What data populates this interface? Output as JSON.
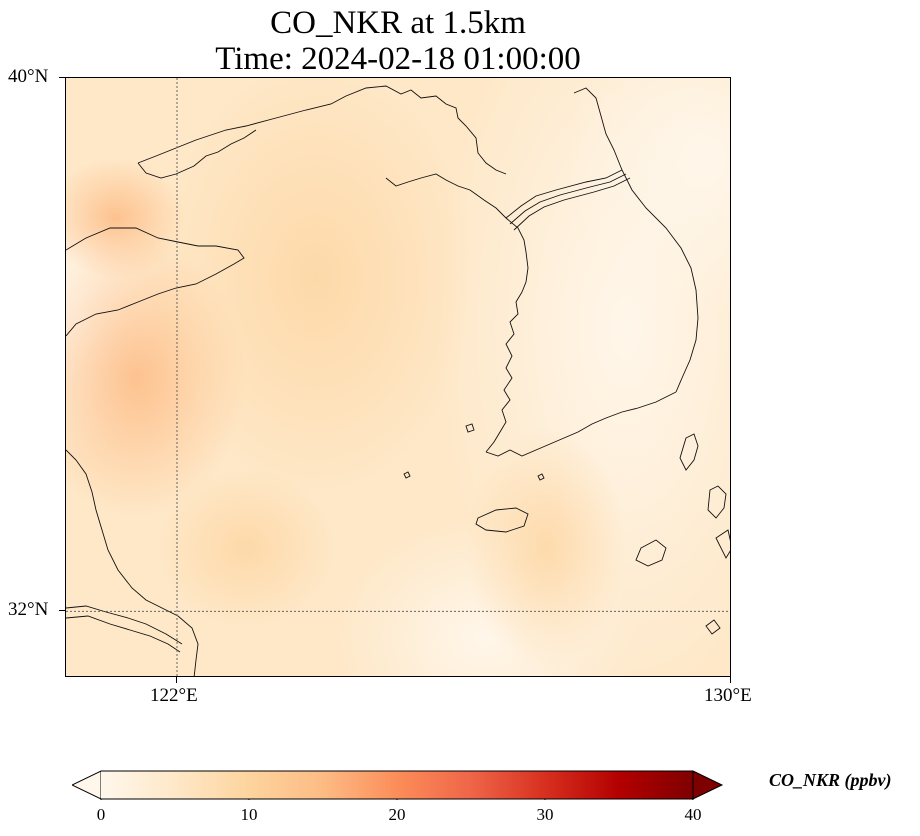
{
  "title": {
    "line1": "CO_NKR at 1.5km",
    "line2": "Time: 2024-02-18 01:00:00"
  },
  "map": {
    "lon_range": [
      120.4,
      130.0
    ],
    "lat_range": [
      31.0,
      40.0
    ],
    "gridlines": {
      "lon": 122,
      "lat": 32,
      "style": "dotted"
    },
    "lat_ticks": [
      {
        "value": 40,
        "label": "40°N"
      },
      {
        "value": 32,
        "label": "32°N"
      }
    ],
    "lon_ticks": [
      {
        "value": 122,
        "label": "122°E"
      },
      {
        "value": 130,
        "label": "130°E"
      }
    ]
  },
  "colorbar": {
    "title": "CO_NKR (ppbv)",
    "colormap": "OrRd",
    "range": [
      0,
      40
    ],
    "extend": "both",
    "ticks": [
      {
        "value": 0,
        "label": "0"
      },
      {
        "value": 10,
        "label": "10"
      },
      {
        "value": 20,
        "label": "20"
      },
      {
        "value": 30,
        "label": "30"
      },
      {
        "value": 40,
        "label": "40"
      }
    ],
    "stops": [
      "#fff7ec",
      "#fee8c8",
      "#fdd49e",
      "#fdbb84",
      "#fc8d59",
      "#ef6548",
      "#d7301f",
      "#b30000",
      "#7f0000"
    ]
  }
}
